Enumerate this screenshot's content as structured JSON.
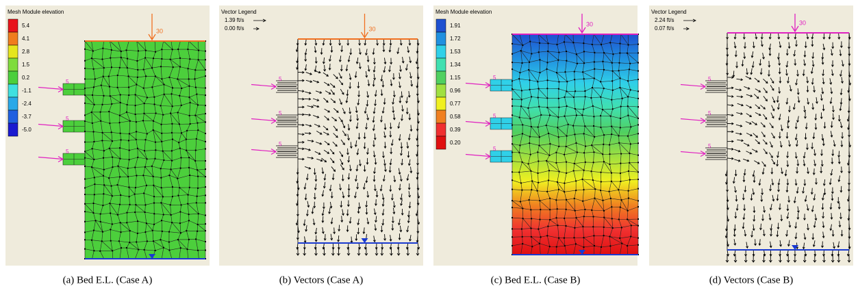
{
  "panels": [
    {
      "caption": "(a) Bed E.L. (Case A)",
      "legend_title": "Mesh Module elevation",
      "legend": [
        {
          "label": "5.4",
          "color": "#e8141b"
        },
        {
          "label": "4.1",
          "color": "#f07d1e"
        },
        {
          "label": "2.8",
          "color": "#e6e61e"
        },
        {
          "label": "1.5",
          "color": "#7fdc3c"
        },
        {
          "label": "0.2",
          "color": "#4ccf3c"
        },
        {
          "label": "-1.1",
          "color": "#3fe0e0"
        },
        {
          "label": "-2.4",
          "color": "#28a8e8"
        },
        {
          "label": "-3.7",
          "color": "#2060e0"
        },
        {
          "label": "-5.0",
          "color": "#1a1ad0"
        }
      ],
      "fill_color": "#4ccf3c",
      "top_label": "30",
      "side_labels": [
        "5",
        "5",
        "5"
      ]
    },
    {
      "caption": "(b) Vectors (Case A)",
      "legend_title": "Vector Legend",
      "vectors": [
        "1.39 ft/s",
        "0.00 ft/s"
      ],
      "top_label": "30",
      "side_labels": [
        "5",
        "5",
        "5"
      ]
    },
    {
      "caption": "(c) Bed E.L. (Case B)",
      "legend_title": "Mesh Module elevation",
      "legend": [
        {
          "label": "1.91",
          "color": "#1e50d0"
        },
        {
          "label": "1.72",
          "color": "#2090e0"
        },
        {
          "label": "1.53",
          "color": "#30d0e8"
        },
        {
          "label": "1.34",
          "color": "#40e0b0"
        },
        {
          "label": "1.15",
          "color": "#50d060"
        },
        {
          "label": "0.96",
          "color": "#a0e040"
        },
        {
          "label": "0.77",
          "color": "#f0f020"
        },
        {
          "label": "0.58",
          "color": "#f08020"
        },
        {
          "label": "0.39",
          "color": "#f03030"
        },
        {
          "label": "0.20",
          "color": "#e01010"
        }
      ],
      "top_label": "30",
      "side_labels": [
        "5",
        "5",
        "5"
      ]
    },
    {
      "caption": "(d) Vectors (Case B)",
      "legend_title": "Vector Legend",
      "vectors": [
        "2.24 ft/s",
        "0.07 ft/s"
      ],
      "top_label": "30",
      "side_labels": [
        "5",
        "5",
        "5"
      ]
    }
  ]
}
